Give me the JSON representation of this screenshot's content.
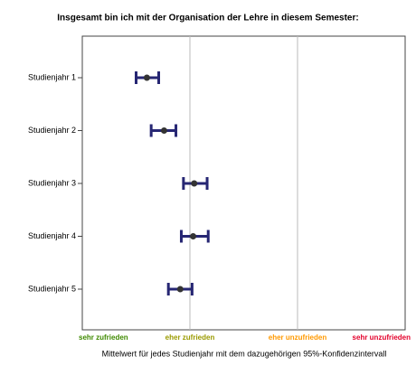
{
  "chart_data": {
    "type": "errorbar",
    "title": "Insgesamt bin ich mit der Organisation der Lehre in diesem Semester:",
    "x_label": "Mittelwert für jedes Studienjahr mit dem dazugehörigen 95%-Konfidenzintervall",
    "categories": [
      "Studienjahr 1",
      "Studienjahr 2",
      "Studienjahr 3",
      "Studienjahr 4",
      "Studienjahr 5"
    ],
    "values": [
      1.6,
      1.76,
      2.04,
      2.03,
      1.91
    ],
    "ci_low": [
      1.5,
      1.64,
      1.94,
      1.92,
      1.8
    ],
    "ci_high": [
      1.71,
      1.87,
      2.16,
      2.17,
      2.02
    ],
    "color": "#262673",
    "point_color": "#333333",
    "xlim": [
      1,
      4
    ],
    "xticks": [
      {
        "value": 1,
        "label": "sehr zufrieden"
      },
      {
        "value": 2,
        "label": "eher zufrieden"
      },
      {
        "value": 3,
        "label": "eher unzufrieden"
      },
      {
        "value": 4,
        "label": "sehr unzufrieden"
      }
    ],
    "xtick_colors": [
      "#3f8a00",
      "#9a9a00",
      "#ff9900",
      "#e4002b"
    ],
    "grid": true
  }
}
